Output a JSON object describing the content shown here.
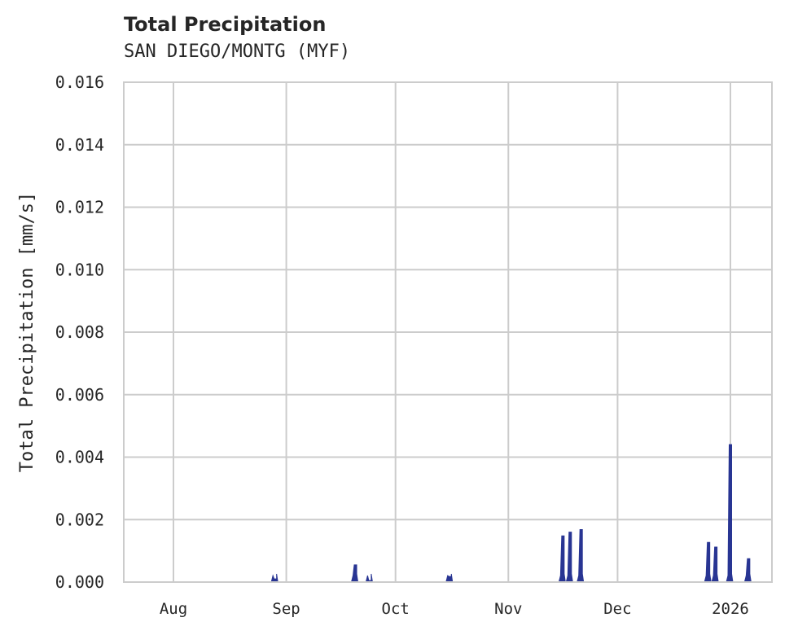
{
  "chart_data": {
    "type": "line",
    "title": "Total Precipitation",
    "subtitle": "SAN DIEGO/MONTG (MYF)",
    "xlabel": "",
    "ylabel": "Total Precipitation [mm/s]",
    "ylim": [
      0,
      0.016
    ],
    "yticks": [
      "0.000",
      "0.002",
      "0.004",
      "0.006",
      "0.008",
      "0.010",
      "0.012",
      "0.014",
      "0.016"
    ],
    "xticks": [
      "Aug",
      "Sep",
      "Oct",
      "Nov",
      "Dec",
      "2026"
    ],
    "grid": true,
    "color": "#283593",
    "events": [
      {
        "date": "2025-08-29",
        "value": 0.0001
      },
      {
        "date": "2025-09-20",
        "value": 0.00055
      },
      {
        "date": "2025-09-24",
        "value": 5e-05
      },
      {
        "date": "2025-10-16",
        "value": 0.00018
      },
      {
        "date": "2025-11-16",
        "value": 0.00148
      },
      {
        "date": "2025-11-18",
        "value": 0.0016
      },
      {
        "date": "2025-11-21",
        "value": 0.00168
      },
      {
        "date": "2025-12-26",
        "value": 0.00127
      },
      {
        "date": "2025-12-28",
        "value": 0.00112
      },
      {
        "date": "2026-01-01",
        "value": 0.0044
      },
      {
        "date": "2026-01-06",
        "value": 0.00075
      }
    ]
  }
}
